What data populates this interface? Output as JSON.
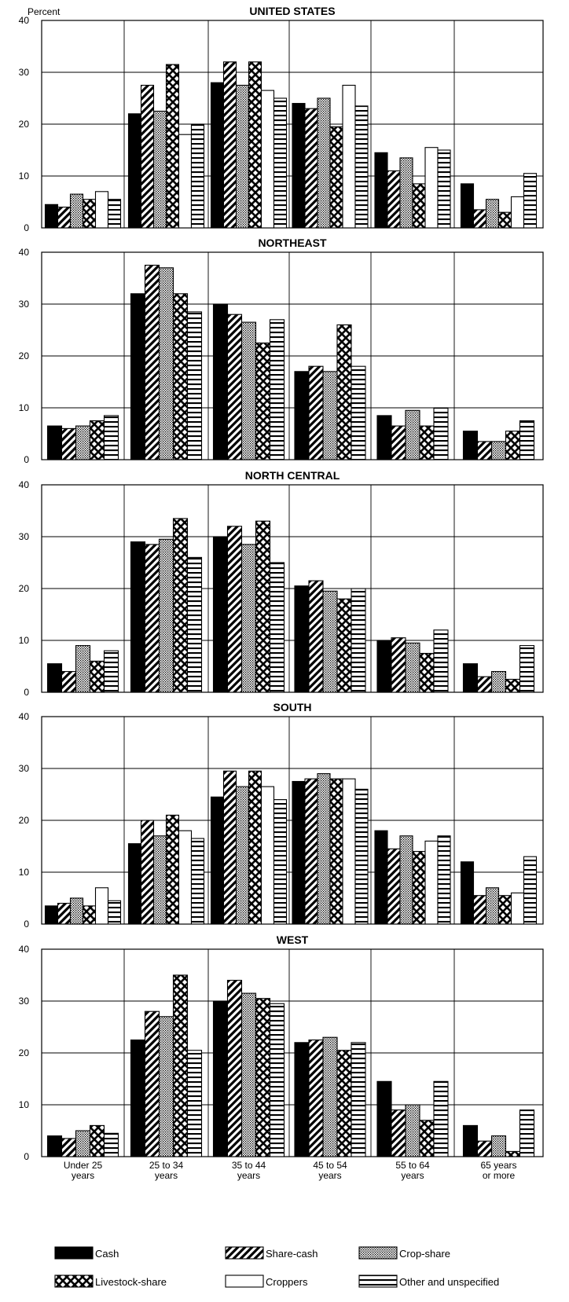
{
  "chart_data": {
    "type": "bar",
    "ylabel": "Percent",
    "ylim": [
      0,
      40
    ],
    "yticks": [
      0,
      10,
      20,
      30,
      40
    ],
    "grid": true,
    "categories": [
      [
        "Under 25",
        "years"
      ],
      [
        "25 to 34",
        "years"
      ],
      [
        "35 to 44",
        "years"
      ],
      [
        "45 to 54",
        "years"
      ],
      [
        "55 to 64",
        "years"
      ],
      [
        "65 years",
        "or more"
      ]
    ],
    "series_names": [
      "Cash",
      "Share-cash",
      "Crop-share",
      "Livestock-share",
      "Croppers",
      "Other and unspecified"
    ],
    "legend_position": "bottom",
    "panels": [
      {
        "title": "UNITED STATES",
        "series": [
          {
            "name": "Cash",
            "values": [
              4.5,
              22,
              28,
              24,
              14.5,
              8.5
            ]
          },
          {
            "name": "Share-cash",
            "values": [
              4,
              27.5,
              32,
              23,
              11,
              3.5
            ]
          },
          {
            "name": "Crop-share",
            "values": [
              6.5,
              22.5,
              27.5,
              25,
              13.5,
              5.5
            ]
          },
          {
            "name": "Livestock-share",
            "values": [
              5.5,
              31.5,
              32,
              19.5,
              8.5,
              3
            ]
          },
          {
            "name": "Croppers",
            "values": [
              7,
              18,
              26.5,
              27.5,
              15.5,
              6
            ]
          },
          {
            "name": "Other and unspecified",
            "values": [
              5.5,
              20,
              25,
              23.5,
              15,
              10.5
            ]
          }
        ]
      },
      {
        "title": "NORTHEAST",
        "series": [
          {
            "name": "Cash",
            "values": [
              6.5,
              32,
              30,
              17,
              8.5,
              5.5
            ]
          },
          {
            "name": "Share-cash",
            "values": [
              6,
              37.5,
              28,
              18,
              6.5,
              3.5
            ]
          },
          {
            "name": "Crop-share",
            "values": [
              6.5,
              37,
              26.5,
              17,
              9.5,
              3.5
            ]
          },
          {
            "name": "Livestock-share",
            "values": [
              7.5,
              32,
              22.5,
              26,
              6.5,
              5.5
            ]
          },
          {
            "name": "Other and unspecified",
            "values": [
              8.5,
              28.5,
              27,
              18,
              10,
              7.5
            ]
          }
        ]
      },
      {
        "title": "NORTH CENTRAL",
        "series": [
          {
            "name": "Cash",
            "values": [
              5.5,
              29,
              30,
              20.5,
              10,
              5.5
            ]
          },
          {
            "name": "Share-cash",
            "values": [
              4,
              28.5,
              32,
              21.5,
              10.5,
              3
            ]
          },
          {
            "name": "Crop-share",
            "values": [
              9,
              29.5,
              28.5,
              19.5,
              9.5,
              4
            ]
          },
          {
            "name": "Livestock-share",
            "values": [
              6,
              33.5,
              33,
              18,
              7.5,
              2.5
            ]
          },
          {
            "name": "Other and unspecified",
            "values": [
              8,
              26,
              25,
              20,
              12,
              9
            ]
          }
        ]
      },
      {
        "title": "SOUTH",
        "series": [
          {
            "name": "Cash",
            "values": [
              3.5,
              15.5,
              24.5,
              27.5,
              18,
              12
            ]
          },
          {
            "name": "Share-cash",
            "values": [
              4,
              20,
              29.5,
              28,
              14.5,
              5.5
            ]
          },
          {
            "name": "Crop-share",
            "values": [
              5,
              17,
              26.5,
              29,
              17,
              7
            ]
          },
          {
            "name": "Livestock-share",
            "values": [
              3.5,
              21,
              29.5,
              28,
              14,
              5.5
            ]
          },
          {
            "name": "Croppers",
            "values": [
              7,
              18,
              26.5,
              28,
              16,
              6
            ]
          },
          {
            "name": "Other and unspecified",
            "values": [
              4.5,
              16.5,
              24,
              26,
              17,
              13
            ]
          }
        ]
      },
      {
        "title": "WEST",
        "series": [
          {
            "name": "Cash",
            "values": [
              4,
              22.5,
              30,
              22,
              14.5,
              6
            ]
          },
          {
            "name": "Share-cash",
            "values": [
              3.5,
              28,
              34,
              22.5,
              9,
              3
            ]
          },
          {
            "name": "Crop-share",
            "values": [
              5,
              27,
              31.5,
              23,
              10,
              4
            ]
          },
          {
            "name": "Livestock-share",
            "values": [
              6,
              35,
              30.5,
              20.5,
              7,
              1
            ]
          },
          {
            "name": "Other and unspecified",
            "values": [
              4.5,
              20.5,
              29.5,
              22,
              14.5,
              9
            ]
          }
        ]
      }
    ]
  }
}
